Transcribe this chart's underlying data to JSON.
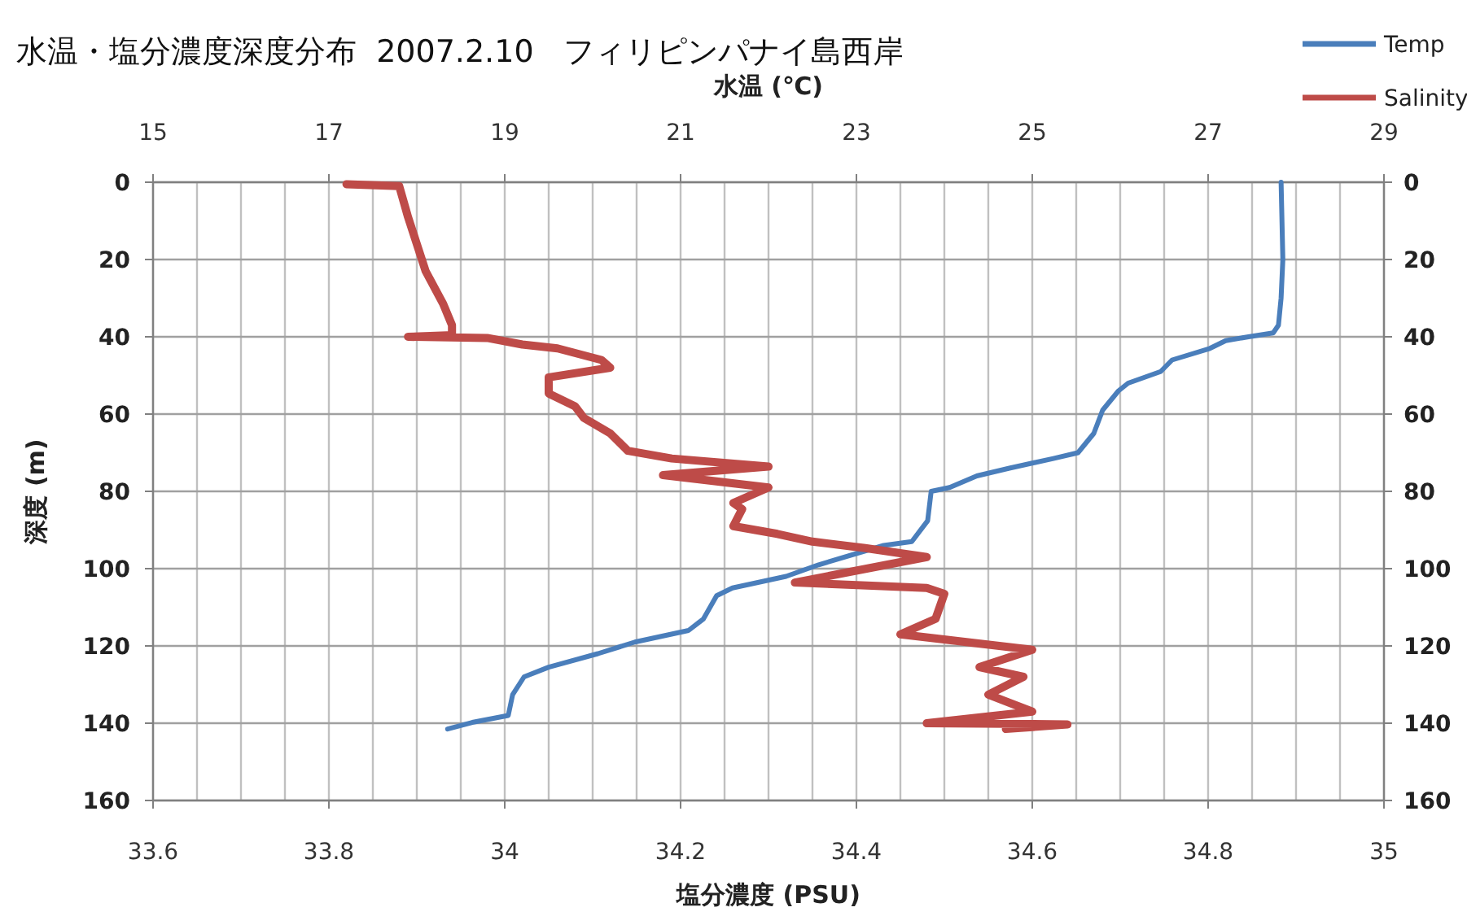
{
  "chart_data": {
    "type": "line",
    "title": "水温・塩分濃度深度分布  2007.2.10   フィリピンパナイ島西岸",
    "xlabel": "塩分濃度 (PSU)",
    "x2label": "水温 (℃)",
    "ylabel": "深度 (m)",
    "xlim": [
      33.6,
      35
    ],
    "xticks": [
      33.6,
      {
        "value": 33.65,
        "label": null
      },
      {
        "value": 33.7,
        "label": null
      },
      {
        "value": 33.75,
        "label": null
      },
      33.8,
      {
        "value": 33.85,
        "label": null
      },
      {
        "value": 33.9,
        "label": null
      },
      {
        "value": 33.95,
        "label": null
      },
      34,
      {
        "value": 34.05,
        "label": null
      },
      {
        "value": 34.1,
        "label": null
      },
      {
        "value": 34.15,
        "label": null
      },
      34.2,
      {
        "value": 34.25,
        "label": null
      },
      {
        "value": 34.3,
        "label": null
      },
      {
        "value": 34.35,
        "label": null
      },
      34.4,
      {
        "value": 34.45,
        "label": null
      },
      {
        "value": 34.5,
        "label": null
      },
      {
        "value": 34.55,
        "label": null
      },
      34.6,
      {
        "value": 34.65,
        "label": null
      },
      {
        "value": 34.7,
        "label": null
      },
      {
        "value": 34.75,
        "label": null
      },
      34.8,
      {
        "value": 34.85,
        "label": null
      },
      {
        "value": 34.9,
        "label": null
      },
      {
        "value": 34.95,
        "label": null
      },
      35
    ],
    "x2lim": [
      15,
      29
    ],
    "x2ticks": [
      15,
      17,
      19,
      21,
      23,
      25,
      27,
      29
    ],
    "ylim": [
      160,
      0
    ],
    "yticks": [
      0,
      20,
      40,
      60,
      80,
      100,
      120,
      140,
      160
    ],
    "y2lim": [
      160,
      0
    ],
    "y2ticks": [
      0,
      20,
      40,
      60,
      80,
      100,
      120,
      140,
      160
    ],
    "grid": true,
    "legend": "top right",
    "series": [
      {
        "name": "Temp",
        "color": "#4a7ebb",
        "axis": "x2",
        "x": [
          27.83,
          27.85,
          27.83,
          27.8,
          27.74,
          27.46,
          27.2,
          27.02,
          26.59,
          26.46,
          26.09,
          25.98,
          25.8,
          25.7,
          25.52,
          25.24,
          24.74,
          24.37,
          24.06,
          23.85,
          23.81,
          23.63,
          23.31,
          22.57,
          22.2,
          21.59,
          21.41,
          21.26,
          21.09,
          20.48,
          20.06,
          19.5,
          19.22,
          19.09,
          19.04,
          18.63,
          18.35
        ],
        "values": [
          0,
          20,
          30,
          37,
          39,
          40,
          41,
          43,
          46,
          49,
          52,
          54,
          59,
          65,
          70,
          71.5,
          74,
          76,
          79,
          80,
          87.6,
          93,
          94,
          99,
          102,
          105,
          107,
          113,
          116,
          119,
          122,
          125.5,
          128,
          132.6,
          138,
          139.8,
          141.5
        ]
      },
      {
        "name": "Salinity",
        "color": "#be4b48",
        "x": [
          33.82,
          33.88,
          33.89,
          33.9,
          33.91,
          33.93,
          33.94,
          33.94,
          33.89,
          33.98,
          34.02,
          34.06,
          34.11,
          34.12,
          34.05,
          34.05,
          34.08,
          34.09,
          34.12,
          34.14,
          34.19,
          34.3,
          34.18,
          34.3,
          34.26,
          34.27,
          34.26,
          34.31,
          34.35,
          34.41,
          34.48,
          34.33,
          34.48,
          34.5,
          34.49,
          34.45,
          34.6,
          34.54,
          34.59,
          34.55,
          34.6,
          34.48,
          34.64,
          34.57
        ],
        "values": [
          0.5,
          1,
          9,
          16,
          23,
          31.5,
          37,
          39.6,
          40,
          40.3,
          42,
          43,
          46,
          48,
          50.5,
          54.7,
          58,
          61,
          65,
          69.5,
          71.5,
          73.6,
          75.8,
          79,
          83,
          84.6,
          89,
          91,
          93,
          94.7,
          97,
          103.6,
          105,
          106.5,
          113,
          117,
          121,
          125.5,
          128,
          132.6,
          137,
          140,
          140.3,
          141.5
        ]
      }
    ]
  }
}
